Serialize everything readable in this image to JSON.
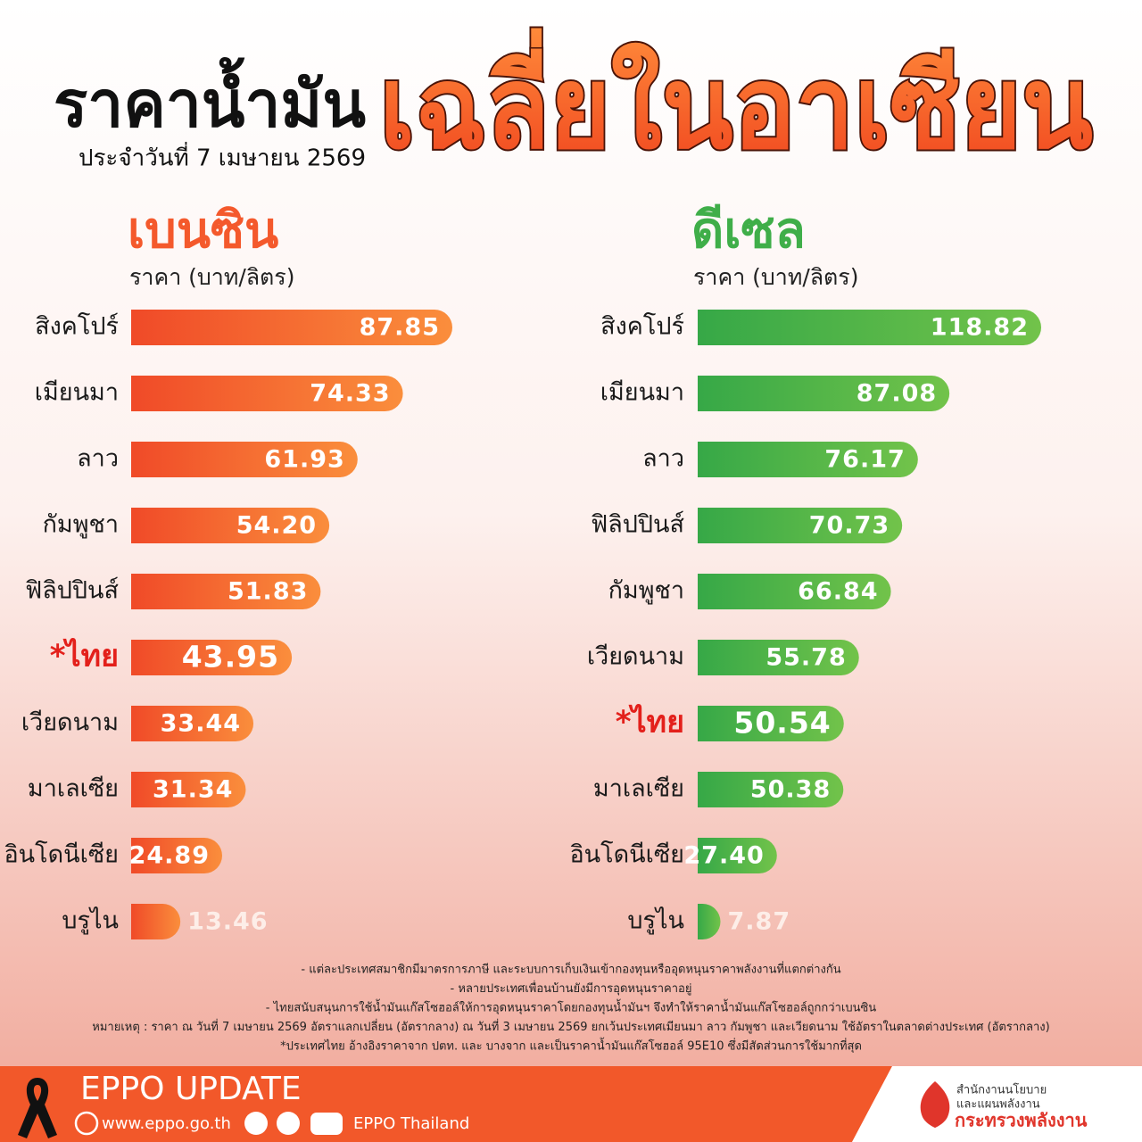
{
  "header": {
    "title": "ราคาน้ำมัน",
    "date": "ประจำวันที่  7 เมษายน 2569",
    "highlight": "เฉลี่ยในอาเซียน"
  },
  "chart_data": [
    {
      "type": "bar",
      "title": "เบนซิน",
      "subtitle": "ราคา (บาท/ลิตร)",
      "color": "#f4592c",
      "categories": [
        "สิงคโปร์",
        "เมียนมา",
        "ลาว",
        "กัมพูชา",
        "ฟิลิปปินส์",
        "*ไทย",
        "เวียดนาม",
        "มาเลเซีย",
        "อินโดนีเซีย",
        "บรูไน"
      ],
      "values": [
        87.85,
        74.33,
        61.93,
        54.2,
        51.83,
        43.95,
        33.44,
        31.34,
        24.89,
        13.46
      ],
      "value_labels": [
        "87.85",
        "74.33",
        "61.93",
        "54.20",
        "51.83",
        "43.95",
        "33.44",
        "31.34",
        "24.89",
        "13.46"
      ]
    },
    {
      "type": "bar",
      "title": "ดีเซล",
      "subtitle": "ราคา (บาท/ลิตร)",
      "color": "#3fae49",
      "categories": [
        "สิงคโปร์",
        "เมียนมา",
        "ลาว",
        "ฟิลิปปินส์",
        "กัมพูชา",
        "เวียดนาม",
        "*ไทย",
        "มาเลเซีย",
        "อินโดนีเซีย",
        "บรูไน"
      ],
      "values": [
        118.82,
        87.08,
        76.17,
        70.73,
        66.84,
        55.78,
        50.54,
        50.38,
        27.4,
        7.87
      ],
      "value_labels": [
        "118.82",
        "87.08",
        "76.17",
        "70.73",
        "66.84",
        "55.78",
        "50.54",
        "50.38",
        "27.40",
        "7.87"
      ]
    }
  ],
  "notes": [
    "- แต่ละประเทศสมาชิกมีมาตรการภาษี และระบบการเก็บเงินเข้ากองทุนหรืออุดหนุนราคาพลังงานที่แตกต่างกัน",
    "- หลายประเทศเพื่อนบ้านยังมีการอุดหนุนราคาอยู่",
    "- ไทยสนับสนุนการใช้น้ำมันแก๊สโซฮอล์ให้การอุดหนุนราคาโดยกองทุนน้ำมันฯ จึงทำให้ราคาน้ำมันแก๊สโซฮอล์ถูกกว่าเบนซิน",
    "หมายเหตุ : ราคา ณ วันที่ 7 เมษายน 2569 อัตราแลกเปลี่ยน (อัตรากลาง) ณ วันที่ 3 เมษายน 2569 ยกเว้นประเทศเมียนมา ลาว กัมพูชา และเวียดนาม ใช้อัตราในตลาดต่างประเทศ (อัตรากลาง)",
    "*ประเทศไทย อ้างอิงราคาจาก ปตท. และ บางจาก และเป็นราคาน้ำมันแก๊สโซฮอล์ 95E10 ซึ่งมีสัดส่วนการใช้มากที่สุด"
  ],
  "footer": {
    "brand": "EPPO UPDATE",
    "website": "www.eppo.go.th",
    "social": "EPPO Thailand",
    "org": [
      "สำนักงานนโยบาย",
      "และแผนพลังงาน",
      "กระทรวงพลังงาน"
    ]
  }
}
